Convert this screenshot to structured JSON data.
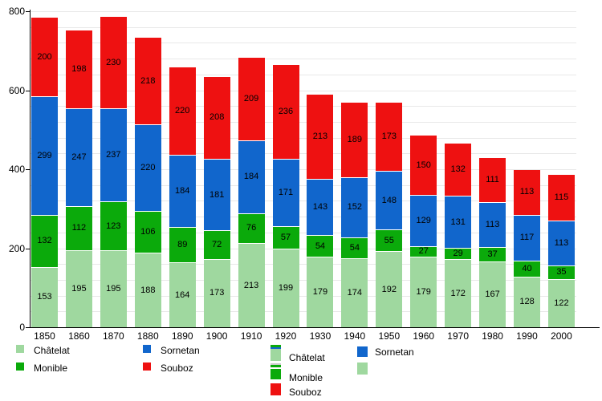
{
  "chart_data": {
    "type": "bar",
    "stacked": true,
    "title": "",
    "xlabel": "",
    "ylabel": "",
    "categories": [
      "1850",
      "1860",
      "1870",
      "1880",
      "1890",
      "1900",
      "1910",
      "1920",
      "1930",
      "1940",
      "1950",
      "1960",
      "1970",
      "1980",
      "1990",
      "2000"
    ],
    "series": [
      {
        "name": "Châtelat",
        "color": "#9fd89f",
        "values": [
          153,
          195,
          195,
          188,
          164,
          173,
          213,
          199,
          179,
          174,
          192,
          179,
          172,
          167,
          128,
          122
        ]
      },
      {
        "name": "Monible",
        "color": "#0baa0b",
        "values": [
          132,
          112,
          123,
          106,
          89,
          72,
          76,
          57,
          54,
          54,
          55,
          27,
          29,
          37,
          40,
          35
        ]
      },
      {
        "name": "Sornetan",
        "color": "#1166cc",
        "values": [
          299,
          247,
          237,
          220,
          184,
          181,
          184,
          171,
          143,
          152,
          148,
          129,
          131,
          113,
          117,
          113
        ]
      },
      {
        "name": "Souboz",
        "color": "#ee1111",
        "values": [
          200,
          198,
          230,
          218,
          220,
          208,
          209,
          236,
          213,
          189,
          173,
          150,
          132,
          111,
          113,
          115
        ]
      }
    ],
    "ylim": [
      0,
      800
    ],
    "yticks": [
      0,
      200,
      400,
      600,
      800
    ],
    "grid": {
      "on": true,
      "step": 40,
      "color": "#e8e8e8"
    },
    "legend_position": "bottom",
    "value_labels": true
  },
  "legend_primary": {
    "items": [
      {
        "label": "Châtelat",
        "swatch": [
          "#9fd89f"
        ]
      },
      {
        "label": "Monible",
        "swatch": [
          "#0baa0b"
        ]
      },
      {
        "label": "Sornetan",
        "swatch": [
          "#1166cc"
        ]
      },
      {
        "label": "Souboz",
        "swatch": [
          "#ee1111"
        ]
      }
    ]
  },
  "legend_secondary": {
    "items": [
      {
        "label": "Châtelat",
        "swatch": [
          "#0baa0b",
          "#1166cc",
          "#9fd89f"
        ]
      },
      {
        "label": "Monible",
        "swatch": [
          "#cccccc",
          "#0baa0b",
          "#ffffff",
          "#0baa0b"
        ]
      },
      {
        "label": "Souboz",
        "swatch": [
          "#ee1111"
        ]
      },
      {
        "label": "Sornetan",
        "swatch": [
          "#1166cc"
        ]
      },
      {
        "label": "",
        "swatch": [
          "#9fd89f"
        ]
      }
    ]
  }
}
